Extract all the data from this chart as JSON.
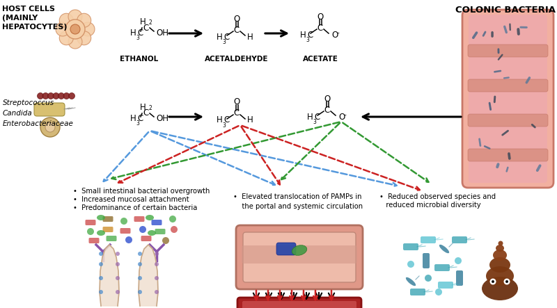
{
  "bg_color": "#ffffff",
  "text_host_cells": "HOST CELLS\n(MAINLY\nHEPATOCYTES)",
  "text_colonic": "COLONIC BACTERIA",
  "text_ethanol": "ETHANOL",
  "text_acetaldehyde": "ACETALDEHYDE",
  "text_acetate": "ACETATE",
  "text_micro1": "Streptococcus",
  "text_micro2": "Candida",
  "text_micro3": "Enterobacteriaceae",
  "bullet1a": "•  Small intestinal bacterial overgrowth",
  "bullet1b": "•  Increased mucosal attachment",
  "bullet1c": "•  Predominance of certain bacteria",
  "bullet2": "•  Elevated translocation of PAMPs in\n    the portal and systemic circulation",
  "bullet3a": "•  Reduced observed species and",
  "bullet3b": "   reduced microbial diversity",
  "dashed_blue": "#5599dd",
  "dashed_green": "#339933",
  "dashed_red": "#cc2222",
  "colon_outer": "#e8a898",
  "colon_inner": "#d48878",
  "colon_crease": "#c07060"
}
